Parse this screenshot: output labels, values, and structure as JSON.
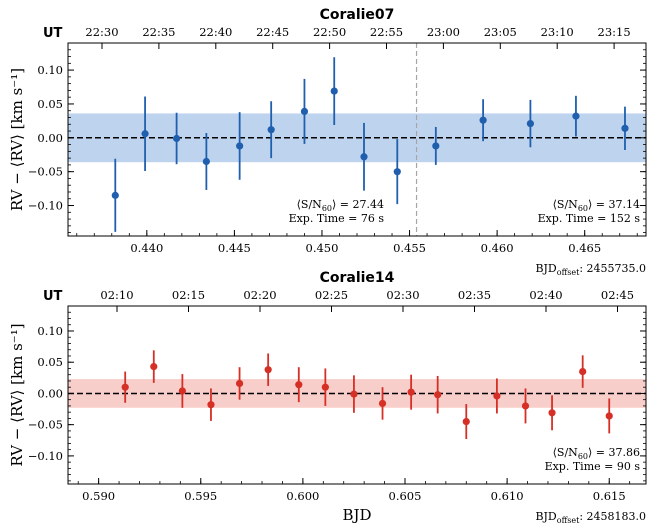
{
  "chart_data": [
    {
      "type": "scatter",
      "title": "Coralie07",
      "ylabel": "RV − ⟨RV⟩ [km s⁻¹]",
      "xlabel": "",
      "offset_label": "BJD",
      "offset_sub": "offset",
      "offset_value": ": 2455735.0",
      "top_axis_label": "UT",
      "top_ticks": [
        "22:30",
        "22:35",
        "22:40",
        "22:45",
        "22:50",
        "22:55",
        "23:00",
        "23:05",
        "23:10",
        "23:15"
      ],
      "xlim": [
        0.4355,
        0.4685
      ],
      "ylim": [
        -0.145,
        0.14
      ],
      "xticks": [
        0.44,
        0.445,
        0.45,
        0.455,
        0.46,
        0.465
      ],
      "yticks": [
        -0.1,
        -0.05,
        0.0,
        0.05,
        0.1
      ],
      "color": "#1f5fae",
      "band_color": "#a8c6e8",
      "band": [
        -0.036,
        0.036
      ],
      "vline_x": 0.4554,
      "grid": false,
      "annotations": [
        {
          "position": "center",
          "snr": "27.44",
          "exp": "Exp. Time = 76 s"
        },
        {
          "position": "right",
          "snr": "37.14",
          "exp": "Exp. Time = 152 s"
        }
      ],
      "x": [
        0.4382,
        0.4399,
        0.4417,
        0.4434,
        0.4453,
        0.4471,
        0.449,
        0.4507,
        0.4524,
        0.4543,
        0.4565,
        0.4592,
        0.4619,
        0.4645,
        0.4673
      ],
      "y": [
        -0.085,
        0.006,
        -0.001,
        -0.035,
        -0.012,
        0.012,
        0.039,
        0.069,
        -0.028,
        -0.05,
        -0.012,
        0.026,
        0.021,
        0.032,
        0.014
      ],
      "yerr": [
        0.054,
        0.055,
        0.038,
        0.042,
        0.05,
        0.042,
        0.048,
        0.05,
        0.05,
        0.048,
        0.028,
        0.031,
        0.035,
        0.03,
        0.032
      ]
    },
    {
      "type": "scatter",
      "title": "Coralie14",
      "ylabel": "RV − ⟨RV⟩ [km s⁻¹]",
      "xlabel": "BJD",
      "offset_label": "BJD",
      "offset_sub": "offset",
      "offset_value": ": 2458183.0",
      "top_axis_label": "UT",
      "top_ticks": [
        "02:10",
        "02:15",
        "02:20",
        "02:25",
        "02:30",
        "02:35",
        "02:40",
        "02:45"
      ],
      "xlim": [
        0.5885,
        0.6168
      ],
      "ylim": [
        -0.145,
        0.14
      ],
      "xticks": [
        0.59,
        0.595,
        0.6,
        0.605,
        0.61,
        0.615
      ],
      "yticks": [
        -0.1,
        -0.05,
        0.0,
        0.05,
        0.1
      ],
      "color": "#d62f26",
      "band_color": "#f6bdb8",
      "band": [
        -0.023,
        0.023
      ],
      "grid": false,
      "annotations": [
        {
          "position": "right",
          "snr": "37.86",
          "exp": "Exp. Time = 90 s"
        }
      ],
      "x": [
        0.5913,
        0.5927,
        0.5941,
        0.5955,
        0.5969,
        0.5983,
        0.5998,
        0.6011,
        0.6025,
        0.6039,
        0.6053,
        0.6066,
        0.608,
        0.6095,
        0.6109,
        0.6122,
        0.6137,
        0.615
      ],
      "y": [
        0.01,
        0.043,
        0.004,
        -0.018,
        0.016,
        0.038,
        0.014,
        0.01,
        -0.001,
        -0.016,
        0.002,
        -0.002,
        -0.045,
        -0.004,
        -0.02,
        -0.031,
        0.035,
        -0.036
      ],
      "yerr": [
        0.025,
        0.026,
        0.027,
        0.026,
        0.026,
        0.026,
        0.028,
        0.03,
        0.03,
        0.026,
        0.028,
        0.03,
        0.028,
        0.028,
        0.028,
        0.028,
        0.026,
        0.028
      ]
    }
  ]
}
